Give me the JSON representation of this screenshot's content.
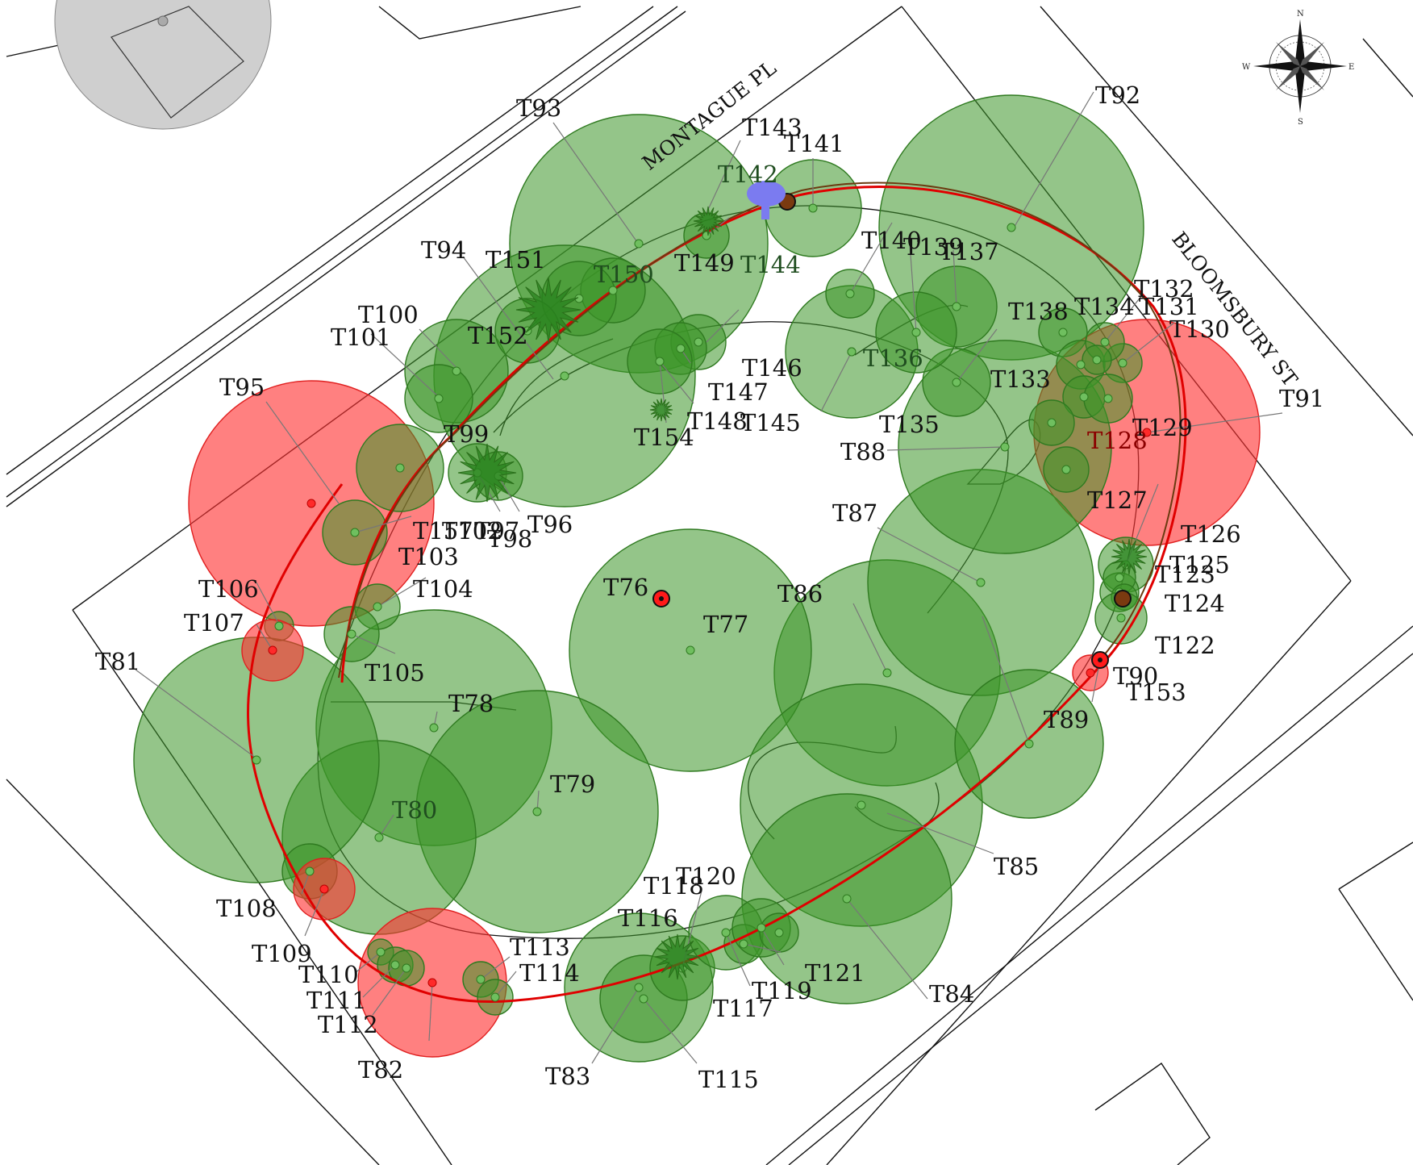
{
  "streets": {
    "north_west": "MONTAGUE PL",
    "north_east": "BLOOMSBURY ST"
  },
  "compass": {
    "n": "N",
    "s": "S",
    "e": "E",
    "w": "W"
  },
  "colors": {
    "retain": "#4a9a3a",
    "remove": "#ff3b3b",
    "neighbour": "#cfcfcf",
    "fence": "#e00000",
    "path": "#6b3a10",
    "hydrant": "#7b7bf0"
  },
  "trees": [
    {
      "id": "T76",
      "status": "remove-small"
    },
    {
      "id": "T77",
      "status": "retain"
    },
    {
      "id": "T78",
      "status": "retain"
    },
    {
      "id": "T79",
      "status": "retain"
    },
    {
      "id": "T80",
      "status": "retain"
    },
    {
      "id": "T81",
      "status": "retain"
    },
    {
      "id": "T82",
      "status": "remove"
    },
    {
      "id": "T83",
      "status": "retain"
    },
    {
      "id": "T84",
      "status": "retain"
    },
    {
      "id": "T85",
      "status": "retain"
    },
    {
      "id": "T86",
      "status": "retain"
    },
    {
      "id": "T87",
      "status": "retain"
    },
    {
      "id": "T88",
      "status": "retain"
    },
    {
      "id": "T89",
      "status": "retain"
    },
    {
      "id": "T90",
      "status": "remove-small"
    },
    {
      "id": "T91",
      "status": "remove"
    },
    {
      "id": "T92",
      "status": "retain"
    },
    {
      "id": "T93",
      "status": "retain"
    },
    {
      "id": "T94",
      "status": "retain"
    },
    {
      "id": "T95",
      "status": "remove"
    },
    {
      "id": "T96",
      "status": "retain"
    },
    {
      "id": "T97",
      "status": "retain"
    },
    {
      "id": "T98",
      "status": "retain"
    },
    {
      "id": "T99",
      "status": "retain"
    },
    {
      "id": "T100",
      "status": "retain"
    },
    {
      "id": "T101",
      "status": "retain"
    },
    {
      "id": "T102",
      "status": "retain"
    },
    {
      "id": "T103",
      "status": "retain"
    },
    {
      "id": "T104",
      "status": "retain"
    },
    {
      "id": "T105",
      "status": "retain"
    },
    {
      "id": "T106",
      "status": "retain"
    },
    {
      "id": "T107",
      "status": "remove"
    },
    {
      "id": "T108",
      "status": "retain"
    },
    {
      "id": "T109",
      "status": "remove"
    },
    {
      "id": "T110",
      "status": "retain"
    },
    {
      "id": "T111",
      "status": "retain"
    },
    {
      "id": "T112",
      "status": "retain"
    },
    {
      "id": "T113",
      "status": "retain"
    },
    {
      "id": "T114",
      "status": "retain"
    },
    {
      "id": "T115",
      "status": "retain"
    },
    {
      "id": "T116",
      "status": "retain"
    },
    {
      "id": "T117",
      "status": "retain"
    },
    {
      "id": "T118",
      "status": "retain"
    },
    {
      "id": "T119",
      "status": "retain"
    },
    {
      "id": "T120",
      "status": "retain"
    },
    {
      "id": "T121",
      "status": "retain"
    },
    {
      "id": "T122",
      "status": "retain"
    },
    {
      "id": "T123",
      "status": "retain"
    },
    {
      "id": "T124",
      "status": "retain"
    },
    {
      "id": "T125",
      "status": "retain"
    },
    {
      "id": "T126",
      "status": "retain"
    },
    {
      "id": "T127",
      "status": "retain"
    },
    {
      "id": "T128",
      "status": "retain"
    },
    {
      "id": "T129",
      "status": "retain"
    },
    {
      "id": "T130",
      "status": "retain"
    },
    {
      "id": "T131",
      "status": "retain"
    },
    {
      "id": "T132",
      "status": "retain"
    },
    {
      "id": "T133",
      "status": "retain"
    },
    {
      "id": "T134",
      "status": "retain"
    },
    {
      "id": "T135",
      "status": "retain"
    },
    {
      "id": "T136",
      "status": "retain"
    },
    {
      "id": "T137",
      "status": "retain"
    },
    {
      "id": "T138",
      "status": "retain"
    },
    {
      "id": "T139",
      "status": "retain"
    },
    {
      "id": "T140",
      "status": "retain"
    },
    {
      "id": "T141",
      "status": "retain"
    },
    {
      "id": "T142",
      "status": "retain"
    },
    {
      "id": "T143",
      "status": "retain"
    },
    {
      "id": "T144",
      "status": "retain"
    },
    {
      "id": "T145",
      "status": "retain"
    },
    {
      "id": "T146",
      "status": "retain"
    },
    {
      "id": "T147",
      "status": "retain"
    },
    {
      "id": "T148",
      "status": "retain"
    },
    {
      "id": "T149",
      "status": "retain"
    },
    {
      "id": "T150",
      "status": "retain"
    },
    {
      "id": "T151",
      "status": "retain"
    },
    {
      "id": "T152",
      "status": "retain"
    },
    {
      "id": "T153",
      "status": "remove"
    },
    {
      "id": "T154",
      "status": "retain"
    },
    {
      "id": "T157",
      "status": "retain"
    }
  ]
}
